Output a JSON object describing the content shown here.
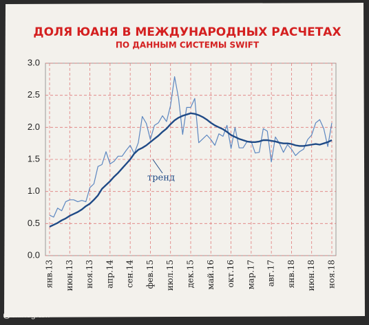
{
  "chart_data": {
    "type": "line",
    "title": "ДОЛЯ ЮАНЯ В МЕЖДУНАРОДНЫХ РАСЧЕТАХ",
    "subtitle": "ПО ДАННЫМ СИСТЕМЫ SWIFT",
    "watermark": "@chinogram",
    "categories": [
      "янв.13",
      null,
      null,
      null,
      null,
      "июн.13",
      null,
      null,
      null,
      null,
      "ноя.13",
      null,
      null,
      null,
      null,
      "апр.14",
      null,
      null,
      null,
      null,
      "сен.14",
      null,
      null,
      null,
      null,
      "фев.15",
      null,
      null,
      null,
      null,
      "июл.15",
      null,
      null,
      null,
      null,
      "дек.15",
      null,
      null,
      null,
      null,
      "май.16",
      null,
      null,
      null,
      null,
      "окт.16",
      null,
      null,
      null,
      null,
      "мар.17",
      null,
      null,
      null,
      null,
      "авг.17",
      null,
      null,
      null,
      null,
      "янв.18",
      null,
      null,
      null,
      null,
      "июн.18",
      null,
      null,
      null,
      null,
      "ноя.18"
    ],
    "series": [
      {
        "color": "#5b86c0",
        "width": 1.2,
        "values": [
          0.63,
          0.6,
          0.74,
          0.7,
          0.84,
          0.87,
          0.87,
          0.84,
          0.86,
          0.84,
          1.06,
          1.12,
          1.39,
          1.42,
          1.62,
          1.43,
          1.47,
          1.55,
          1.55,
          1.64,
          1.72,
          1.59,
          1.76,
          2.17,
          2.06,
          1.81,
          2.03,
          2.07,
          2.18,
          2.09,
          2.34,
          2.79,
          2.45,
          1.89,
          2.31,
          2.31,
          2.45,
          1.76,
          1.82,
          1.88,
          1.81,
          1.72,
          1.9,
          1.86,
          2.03,
          1.67,
          2.0,
          1.68,
          1.68,
          1.78,
          1.78,
          1.6,
          1.61,
          1.98,
          1.94,
          1.46,
          1.85,
          1.75,
          1.61,
          1.73,
          1.66,
          1.56,
          1.62,
          1.66,
          1.81,
          1.88,
          2.07,
          2.12,
          1.98,
          1.7,
          2.07
        ]
      },
      {
        "name": "тренд",
        "color": "#1f4a86",
        "width": 2.4,
        "values": [
          0.45,
          0.48,
          0.51,
          0.55,
          0.58,
          0.62,
          0.65,
          0.68,
          0.72,
          0.77,
          0.81,
          0.87,
          0.94,
          1.04,
          1.1,
          1.16,
          1.23,
          1.29,
          1.36,
          1.43,
          1.5,
          1.59,
          1.65,
          1.68,
          1.72,
          1.77,
          1.82,
          1.87,
          1.93,
          1.98,
          2.05,
          2.11,
          2.15,
          2.18,
          2.2,
          2.22,
          2.21,
          2.19,
          2.16,
          2.12,
          2.07,
          2.03,
          2.0,
          1.97,
          1.93,
          1.88,
          1.85,
          1.82,
          1.8,
          1.78,
          1.77,
          1.77,
          1.78,
          1.8,
          1.8,
          1.79,
          1.78,
          1.76,
          1.75,
          1.75,
          1.74,
          1.72,
          1.71,
          1.71,
          1.72,
          1.73,
          1.74,
          1.73,
          1.75,
          1.77,
          1.8
        ]
      }
    ],
    "ylim": [
      0,
      3
    ],
    "yticks": [
      {
        "value": 0,
        "label": "0.0"
      },
      0.5,
      {
        "value": 1,
        "label": "1.0"
      },
      1.5,
      {
        "value": 2,
        "label": "2.0"
      },
      2.5,
      {
        "value": 3,
        "label": "3.0"
      }
    ],
    "grid": true,
    "grid_color": "#e07a7a"
  }
}
